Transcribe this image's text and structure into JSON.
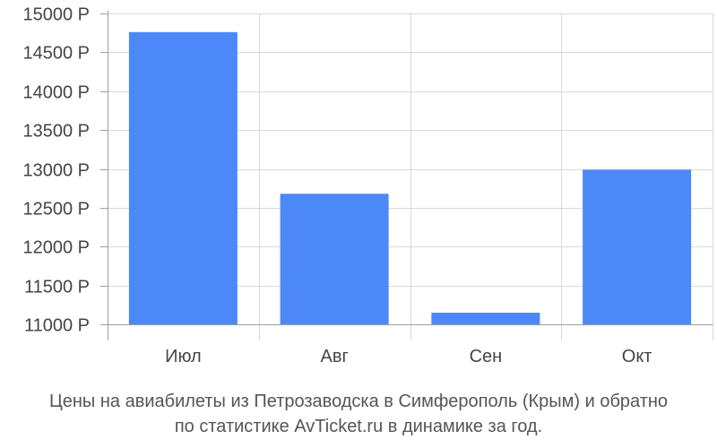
{
  "chart_data": {
    "type": "bar",
    "categories": [
      "Июл",
      "Авг",
      "Сен",
      "Окт"
    ],
    "values": [
      14760,
      12680,
      11150,
      12990
    ],
    "ylim": [
      11000,
      15000
    ],
    "yticks": [
      11000,
      11500,
      12000,
      12500,
      13000,
      13500,
      14000,
      14500,
      15000
    ],
    "ytick_suffix": " Р",
    "grid": true,
    "bar_color": "#4d88f9",
    "caption_lines": [
      "Цены на авиабилеты из Петрозаводска в Симферополь (Крым) и обратно",
      "по статистике AvTicket.ru в динамике за год."
    ]
  }
}
